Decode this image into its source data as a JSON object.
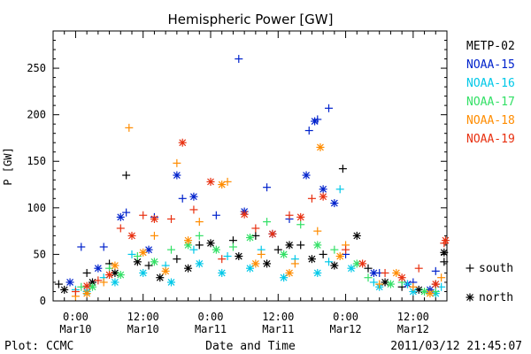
{
  "chart_data": {
    "type": "scatter",
    "title": "Hemispheric Power [GW]",
    "ylabel": "P [GW]",
    "xlabel": "Date and Time",
    "ylim": [
      0,
      290
    ],
    "xlim": [
      "2011-03-09T20:00",
      "2011-03-12T18:00"
    ],
    "y_ticks": [
      0,
      50,
      100,
      150,
      200,
      250
    ],
    "x_ticks": [
      {
        "time": "2011-03-10T00:00",
        "line1": "0:00",
        "line2": "Mar10"
      },
      {
        "time": "2011-03-10T12:00",
        "line1": "12:00",
        "line2": "Mar10"
      },
      {
        "time": "2011-03-11T00:00",
        "line1": "0:00",
        "line2": "Mar11"
      },
      {
        "time": "2011-03-11T12:00",
        "line1": "12:00",
        "line2": "Mar11"
      },
      {
        "time": "2011-03-12T00:00",
        "line1": "0:00",
        "line2": "Mar12"
      },
      {
        "time": "2011-03-12T12:00",
        "line1": "12:00",
        "line2": "Mar12"
      }
    ],
    "series": [
      {
        "name": "METP-02",
        "color": "#000000",
        "south": [
          [
            "2011-03-09T21:00",
            18
          ],
          [
            "2011-03-10T02:00",
            30
          ],
          [
            "2011-03-10T06:00",
            40
          ],
          [
            "2011-03-10T09:00",
            135
          ],
          [
            "2011-03-10T13:00",
            38
          ],
          [
            "2011-03-10T18:00",
            45
          ],
          [
            "2011-03-10T22:00",
            60
          ],
          [
            "2011-03-11T04:00",
            65
          ],
          [
            "2011-03-11T08:00",
            70
          ],
          [
            "2011-03-11T12:00",
            55
          ],
          [
            "2011-03-11T16:00",
            60
          ],
          [
            "2011-03-11T20:00",
            50
          ],
          [
            "2011-03-11T23:30",
            142
          ],
          [
            "2011-03-12T04:00",
            35
          ],
          [
            "2011-03-12T10:00",
            15
          ],
          [
            "2011-03-12T16:00",
            18
          ],
          [
            "2011-03-12T17:30",
            42
          ]
        ],
        "north": [
          [
            "2011-03-09T22:00",
            12
          ],
          [
            "2011-03-10T03:00",
            20
          ],
          [
            "2011-03-10T07:00",
            30
          ],
          [
            "2011-03-10T11:00",
            42
          ],
          [
            "2011-03-10T15:00",
            25
          ],
          [
            "2011-03-10T20:00",
            35
          ],
          [
            "2011-03-11T00:00",
            62
          ],
          [
            "2011-03-11T05:00",
            48
          ],
          [
            "2011-03-11T10:00",
            40
          ],
          [
            "2011-03-11T14:00",
            60
          ],
          [
            "2011-03-11T18:00",
            45
          ],
          [
            "2011-03-11T22:00",
            38
          ],
          [
            "2011-03-12T02:00",
            70
          ],
          [
            "2011-03-12T07:00",
            20
          ],
          [
            "2011-03-12T13:00",
            12
          ],
          [
            "2011-03-12T17:30",
            52
          ]
        ]
      },
      {
        "name": "NOAA-15",
        "color": "#0022cc",
        "south": [
          [
            "2011-03-10T01:00",
            58
          ],
          [
            "2011-03-10T05:00",
            58
          ],
          [
            "2011-03-10T09:00",
            95
          ],
          [
            "2011-03-10T14:00",
            90
          ],
          [
            "2011-03-10T19:00",
            110
          ],
          [
            "2011-03-11T01:00",
            92
          ],
          [
            "2011-03-11T05:00",
            260
          ],
          [
            "2011-03-11T10:00",
            122
          ],
          [
            "2011-03-11T14:00",
            88
          ],
          [
            "2011-03-11T17:30",
            183
          ],
          [
            "2011-03-11T19:00",
            195
          ],
          [
            "2011-03-11T21:00",
            207
          ],
          [
            "2011-03-12T00:00",
            50
          ],
          [
            "2011-03-12T06:00",
            30
          ],
          [
            "2011-03-12T12:00",
            20
          ],
          [
            "2011-03-12T16:00",
            32
          ]
        ],
        "north": [
          [
            "2011-03-09T23:00",
            20
          ],
          [
            "2011-03-10T04:00",
            35
          ],
          [
            "2011-03-10T08:00",
            90
          ],
          [
            "2011-03-10T13:00",
            55
          ],
          [
            "2011-03-10T18:00",
            135
          ],
          [
            "2011-03-10T21:00",
            112
          ],
          [
            "2011-03-11T06:00",
            96
          ],
          [
            "2011-03-11T11:00",
            72
          ],
          [
            "2011-03-11T17:00",
            135
          ],
          [
            "2011-03-11T18:30",
            193
          ],
          [
            "2011-03-11T20:00",
            120
          ],
          [
            "2011-03-11T22:00",
            105
          ],
          [
            "2011-03-12T05:00",
            30
          ],
          [
            "2011-03-12T11:00",
            18
          ],
          [
            "2011-03-12T15:00",
            12
          ]
        ]
      },
      {
        "name": "NOAA-16",
        "color": "#00c8e8",
        "south": [
          [
            "2011-03-10T00:00",
            12
          ],
          [
            "2011-03-10T05:00",
            25
          ],
          [
            "2011-03-10T10:00",
            50
          ],
          [
            "2011-03-10T16:00",
            38
          ],
          [
            "2011-03-10T21:00",
            55
          ],
          [
            "2011-03-11T03:00",
            48
          ],
          [
            "2011-03-11T09:00",
            55
          ],
          [
            "2011-03-11T15:00",
            45
          ],
          [
            "2011-03-11T21:00",
            42
          ],
          [
            "2011-03-11T23:00",
            120
          ],
          [
            "2011-03-12T05:00",
            20
          ],
          [
            "2011-03-12T11:00",
            18
          ],
          [
            "2011-03-12T17:00",
            15
          ]
        ],
        "north": [
          [
            "2011-03-10T02:00",
            10
          ],
          [
            "2011-03-10T07:00",
            20
          ],
          [
            "2011-03-10T12:00",
            30
          ],
          [
            "2011-03-10T17:00",
            20
          ],
          [
            "2011-03-10T22:00",
            40
          ],
          [
            "2011-03-11T02:00",
            30
          ],
          [
            "2011-03-11T07:00",
            35
          ],
          [
            "2011-03-11T13:00",
            25
          ],
          [
            "2011-03-11T19:00",
            30
          ],
          [
            "2011-03-12T01:00",
            35
          ],
          [
            "2011-03-12T06:00",
            15
          ],
          [
            "2011-03-12T12:00",
            10
          ],
          [
            "2011-03-12T16:00",
            8
          ]
        ]
      },
      {
        "name": "NOAA-17",
        "color": "#33e066",
        "south": [
          [
            "2011-03-10T01:00",
            15
          ],
          [
            "2011-03-10T06:00",
            35
          ],
          [
            "2011-03-10T11:00",
            48
          ],
          [
            "2011-03-10T17:00",
            55
          ],
          [
            "2011-03-10T22:00",
            70
          ],
          [
            "2011-03-11T04:00",
            58
          ],
          [
            "2011-03-11T10:00",
            85
          ],
          [
            "2011-03-11T16:00",
            82
          ],
          [
            "2011-03-11T22:00",
            55
          ],
          [
            "2011-03-12T04:00",
            25
          ],
          [
            "2011-03-12T10:00",
            20
          ],
          [
            "2011-03-12T16:00",
            10
          ]
        ],
        "north": [
          [
            "2011-03-10T03:00",
            15
          ],
          [
            "2011-03-10T08:00",
            28
          ],
          [
            "2011-03-10T14:00",
            42
          ],
          [
            "2011-03-10T20:00",
            60
          ],
          [
            "2011-03-11T01:00",
            55
          ],
          [
            "2011-03-11T07:00",
            68
          ],
          [
            "2011-03-11T13:00",
            50
          ],
          [
            "2011-03-11T19:00",
            60
          ],
          [
            "2011-03-12T02:00",
            40
          ],
          [
            "2011-03-12T08:00",
            18
          ],
          [
            "2011-03-12T14:00",
            10
          ]
        ]
      },
      {
        "name": "NOAA-18",
        "color": "#ff8c00",
        "south": [
          [
            "2011-03-10T00:00",
            5
          ],
          [
            "2011-03-10T05:00",
            20
          ],
          [
            "2011-03-10T09:30",
            186
          ],
          [
            "2011-03-10T14:00",
            70
          ],
          [
            "2011-03-10T18:00",
            148
          ],
          [
            "2011-03-10T22:00",
            85
          ],
          [
            "2011-03-11T03:00",
            128
          ],
          [
            "2011-03-11T09:00",
            50
          ],
          [
            "2011-03-11T15:00",
            40
          ],
          [
            "2011-03-11T19:00",
            75
          ],
          [
            "2011-03-12T00:00",
            60
          ],
          [
            "2011-03-12T06:00",
            18
          ],
          [
            "2011-03-12T12:00",
            15
          ],
          [
            "2011-03-12T17:00",
            25
          ]
        ],
        "north": [
          [
            "2011-03-10T02:00",
            8
          ],
          [
            "2011-03-10T07:00",
            38
          ],
          [
            "2011-03-10T12:00",
            52
          ],
          [
            "2011-03-10T16:00",
            32
          ],
          [
            "2011-03-10T20:00",
            65
          ],
          [
            "2011-03-11T02:00",
            125
          ],
          [
            "2011-03-11T08:00",
            40
          ],
          [
            "2011-03-11T14:00",
            30
          ],
          [
            "2011-03-11T19:30",
            165
          ],
          [
            "2011-03-11T23:00",
            48
          ],
          [
            "2011-03-12T09:00",
            30
          ],
          [
            "2011-03-12T15:00",
            8
          ]
        ]
      },
      {
        "name": "NOAA-19",
        "color": "#e83010",
        "south": [
          [
            "2011-03-10T00:00",
            10
          ],
          [
            "2011-03-10T04:00",
            22
          ],
          [
            "2011-03-10T08:00",
            78
          ],
          [
            "2011-03-10T12:00",
            92
          ],
          [
            "2011-03-10T17:00",
            88
          ],
          [
            "2011-03-10T21:00",
            98
          ],
          [
            "2011-03-11T02:00",
            45
          ],
          [
            "2011-03-11T08:00",
            78
          ],
          [
            "2011-03-11T14:00",
            92
          ],
          [
            "2011-03-11T18:00",
            110
          ],
          [
            "2011-03-12T00:00",
            55
          ],
          [
            "2011-03-12T07:00",
            30
          ],
          [
            "2011-03-12T13:00",
            35
          ],
          [
            "2011-03-12T17:30",
            62
          ]
        ],
        "north": [
          [
            "2011-03-10T02:00",
            16
          ],
          [
            "2011-03-10T06:00",
            28
          ],
          [
            "2011-03-10T10:00",
            70
          ],
          [
            "2011-03-10T14:00",
            88
          ],
          [
            "2011-03-10T19:00",
            170
          ],
          [
            "2011-03-11T00:00",
            128
          ],
          [
            "2011-03-11T06:00",
            93
          ],
          [
            "2011-03-11T11:00",
            72
          ],
          [
            "2011-03-11T16:00",
            90
          ],
          [
            "2011-03-11T20:00",
            112
          ],
          [
            "2011-03-12T03:00",
            40
          ],
          [
            "2011-03-12T10:00",
            25
          ],
          [
            "2011-03-12T16:00",
            18
          ],
          [
            "2011-03-12T17:45",
            65
          ]
        ]
      }
    ],
    "markers": [
      {
        "symbol": "+",
        "label": "south"
      },
      {
        "symbol": "*",
        "label": "north"
      }
    ]
  },
  "footer": {
    "plot_credit": "Plot: CCMC",
    "timestamp": "2011/03/12 21:45:07"
  }
}
